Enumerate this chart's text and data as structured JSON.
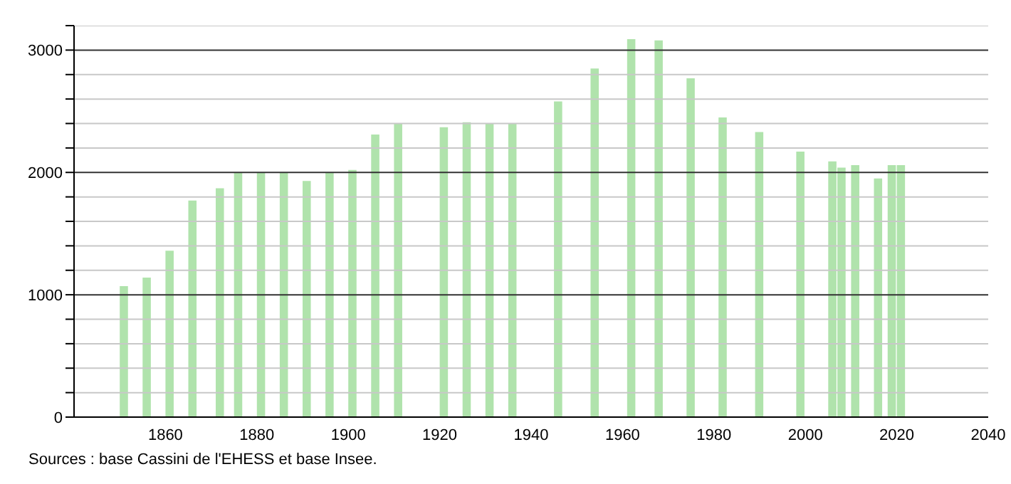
{
  "chart_data": {
    "type": "bar",
    "x": [
      1851,
      1856,
      1861,
      1866,
      1872,
      1876,
      1881,
      1886,
      1891,
      1896,
      1901,
      1906,
      1911,
      1921,
      1926,
      1931,
      1936,
      1946,
      1954,
      1962,
      1968,
      1975,
      1982,
      1990,
      1999,
      2006,
      2008,
      2011,
      2016,
      2019,
      2021
    ],
    "values": [
      1070,
      1140,
      1360,
      1770,
      1870,
      2000,
      2000,
      2000,
      1930,
      2000,
      2020,
      2310,
      2400,
      2370,
      2410,
      2400,
      2400,
      2580,
      2850,
      3090,
      3080,
      2770,
      2450,
      2330,
      2170,
      2090,
      2040,
      2060,
      1950,
      2060,
      2060
    ],
    "color": "#b0e3ac",
    "xlim": [
      1840,
      2040
    ],
    "xticks": [
      1860,
      1880,
      1900,
      1920,
      1940,
      1960,
      1980,
      2000,
      2020,
      2040
    ],
    "ylim": [
      0,
      3200
    ],
    "yticks": [
      0,
      {
        "value": 200,
        "label": null
      },
      {
        "value": 400,
        "label": null
      },
      {
        "value": 600,
        "label": null
      },
      {
        "value": 800,
        "label": null
      },
      1000,
      {
        "value": 1200,
        "label": null
      },
      {
        "value": 1400,
        "label": null
      },
      {
        "value": 1600,
        "label": null
      },
      {
        "value": 1800,
        "label": null
      },
      2000,
      {
        "value": 2200,
        "label": null
      },
      {
        "value": 2400,
        "label": null
      },
      {
        "value": 2600,
        "label": null
      },
      {
        "value": 2800,
        "label": null
      },
      3000,
      {
        "value": 3200,
        "label": null
      }
    ],
    "grid": "y",
    "annotations": [
      "Sources : base Cassini de l'EHESS et base Insee."
    ]
  }
}
